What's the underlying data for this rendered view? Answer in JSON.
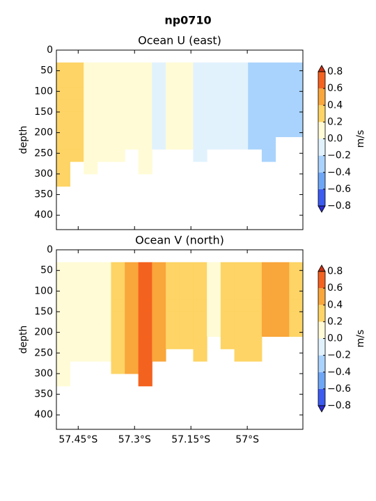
{
  "title": "np0710",
  "chart_data": [
    {
      "type": "contourf",
      "title": "Ocean U (east)",
      "ylabel": "depth",
      "x": [
        -57.49,
        -57.454,
        -57.417,
        -57.381,
        -57.344,
        -57.308,
        -57.272,
        -57.235,
        -57.199,
        -57.162,
        -57.126,
        -57.089,
        -57.053,
        -57.016,
        -56.98,
        -56.943,
        -56.907,
        -56.87
      ],
      "y": [
        45,
        75,
        105,
        135,
        165,
        195,
        225,
        255,
        285,
        315
      ],
      "values": [
        [
          0.3,
          0.3,
          0.1,
          0.1,
          0.1,
          0.1,
          0.1,
          -0.1,
          0.1,
          0.1,
          -0.1,
          -0.1,
          -0.1,
          -0.1,
          -0.3,
          -0.3,
          -0.3,
          -0.3
        ],
        [
          0.3,
          0.3,
          0.1,
          0.1,
          0.1,
          0.1,
          0.1,
          -0.1,
          0.1,
          0.1,
          -0.1,
          -0.1,
          -0.1,
          -0.1,
          -0.3,
          -0.3,
          -0.3,
          -0.3
        ],
        [
          0.3,
          0.3,
          0.1,
          0.1,
          0.1,
          0.1,
          0.1,
          -0.1,
          0.1,
          0.1,
          -0.1,
          -0.1,
          -0.1,
          -0.1,
          -0.3,
          -0.3,
          -0.3,
          -0.3
        ],
        [
          0.3,
          0.3,
          0.1,
          0.1,
          0.1,
          0.1,
          0.1,
          -0.1,
          0.1,
          0.1,
          -0.1,
          -0.1,
          -0.1,
          -0.1,
          -0.3,
          -0.3,
          -0.3,
          -0.3
        ],
        [
          0.3,
          0.3,
          0.1,
          0.1,
          0.1,
          0.1,
          0.1,
          -0.1,
          0.1,
          0.1,
          -0.1,
          -0.1,
          -0.1,
          -0.1,
          -0.3,
          -0.3,
          -0.3,
          -0.3
        ],
        [
          0.3,
          0.3,
          0.1,
          0.1,
          0.1,
          0.1,
          0.1,
          -0.1,
          0.1,
          0.1,
          -0.1,
          -0.1,
          -0.1,
          -0.1,
          -0.3,
          -0.3,
          -0.3,
          -0.3
        ],
        [
          0.3,
          0.3,
          0.1,
          0.1,
          0.1,
          0.1,
          0.1,
          -0.1,
          0.1,
          0.1,
          -0.1,
          -0.1,
          -0.1,
          -0.1,
          -0.3,
          -0.3,
          null,
          null
        ],
        [
          0.3,
          0.3,
          0.1,
          0.1,
          0.1,
          null,
          0.1,
          null,
          null,
          null,
          -0.1,
          null,
          null,
          null,
          null,
          -0.3,
          null,
          null
        ],
        [
          0.3,
          null,
          0.1,
          null,
          null,
          null,
          0.1,
          null,
          null,
          null,
          null,
          null,
          null,
          null,
          null,
          null,
          null,
          null
        ],
        [
          0.3,
          null,
          null,
          null,
          null,
          null,
          null,
          null,
          null,
          null,
          null,
          null,
          null,
          null,
          null,
          null,
          null,
          null
        ]
      ],
      "xlim": [
        -57.508,
        -56.852
      ],
      "ylim": [
        0,
        435
      ],
      "y_inverted": true,
      "yticks": [
        0,
        50,
        100,
        150,
        200,
        250,
        300,
        350,
        400
      ],
      "colors": [
        "#3c5cf0",
        "#6ea6f6",
        "#a9d3fc",
        "#e1f2fd",
        "#fffbd6",
        "#fdd465",
        "#f9a63b",
        "#f4621f"
      ],
      "under_color": "#2b2bd6",
      "over_color": "#c83214",
      "colorbar_label": "m/s",
      "colorbar_ticks": [
        {
          "value": -0.8,
          "label": "−0.8"
        },
        {
          "value": -0.6,
          "label": "−0.6"
        },
        {
          "value": -0.4,
          "label": "−0.4"
        },
        {
          "value": -0.2,
          "label": "−0.2"
        },
        {
          "value": 0,
          "label": "0.0"
        },
        {
          "value": 0.2,
          "label": "0.2"
        },
        {
          "value": 0.4,
          "label": "0.4"
        },
        {
          "value": 0.6,
          "label": "0.6"
        },
        {
          "value": 0.8,
          "label": "0.8"
        }
      ]
    },
    {
      "type": "contourf",
      "title": "Ocean V (north)",
      "ylabel": "depth",
      "x": [
        -57.49,
        -57.454,
        -57.417,
        -57.381,
        -57.344,
        -57.308,
        -57.272,
        -57.235,
        -57.199,
        -57.162,
        -57.126,
        -57.089,
        -57.053,
        -57.016,
        -56.98,
        -56.943,
        -56.907,
        -56.87
      ],
      "y": [
        45,
        75,
        105,
        135,
        165,
        195,
        225,
        255,
        285,
        315
      ],
      "values": [
        [
          0.1,
          0.1,
          0.1,
          0.1,
          0.3,
          0.5,
          0.7,
          0.5,
          0.3,
          0.3,
          0.3,
          0.1,
          0.3,
          0.3,
          0.3,
          0.5,
          0.5,
          0.3
        ],
        [
          0.1,
          0.1,
          0.1,
          0.1,
          0.3,
          0.5,
          0.7,
          0.5,
          0.3,
          0.3,
          0.3,
          0.1,
          0.3,
          0.3,
          0.3,
          0.5,
          0.5,
          0.3
        ],
        [
          0.1,
          0.1,
          0.1,
          0.1,
          0.3,
          0.5,
          0.7,
          0.5,
          0.3,
          0.3,
          0.3,
          0.1,
          0.3,
          0.3,
          0.3,
          0.5,
          0.5,
          0.3
        ],
        [
          0.1,
          0.1,
          0.1,
          0.1,
          0.3,
          0.5,
          0.7,
          0.5,
          0.3,
          0.3,
          0.3,
          0.1,
          0.3,
          0.3,
          0.3,
          0.5,
          0.5,
          0.3
        ],
        [
          0.1,
          0.1,
          0.1,
          0.1,
          0.3,
          0.5,
          0.7,
          0.5,
          0.3,
          0.3,
          0.3,
          0.1,
          0.3,
          0.3,
          0.3,
          0.5,
          0.5,
          0.3
        ],
        [
          0.1,
          0.1,
          0.1,
          0.1,
          0.3,
          0.5,
          0.7,
          0.5,
          0.3,
          0.3,
          0.3,
          0.1,
          0.3,
          0.3,
          0.3,
          0.5,
          0.5,
          0.3
        ],
        [
          0.1,
          0.1,
          0.1,
          0.1,
          0.3,
          0.5,
          0.7,
          0.5,
          0.3,
          0.3,
          0.3,
          null,
          0.3,
          0.3,
          0.3,
          null,
          null,
          null
        ],
        [
          0.1,
          0.1,
          0.1,
          0.1,
          0.3,
          0.5,
          0.7,
          0.5,
          null,
          null,
          0.3,
          null,
          null,
          0.3,
          0.3,
          null,
          null,
          null
        ],
        [
          0.1,
          null,
          null,
          null,
          0.3,
          0.5,
          0.7,
          null,
          null,
          null,
          null,
          null,
          null,
          null,
          null,
          null,
          null,
          null
        ],
        [
          0.1,
          null,
          null,
          null,
          null,
          null,
          0.7,
          null,
          null,
          null,
          null,
          null,
          null,
          null,
          null,
          null,
          null,
          null
        ]
      ],
      "xlim": [
        -57.508,
        -56.852
      ],
      "ylim": [
        0,
        435
      ],
      "y_inverted": true,
      "xticks": [
        {
          "value": -57.45,
          "label": "57.45°S"
        },
        {
          "value": -57.3,
          "label": "57.3°S"
        },
        {
          "value": -57.15,
          "label": "57.15°S"
        },
        {
          "value": -57,
          "label": "57°S"
        }
      ],
      "yticks": [
        0,
        50,
        100,
        150,
        200,
        250,
        300,
        350,
        400
      ],
      "colors": [
        "#3c5cf0",
        "#6ea6f6",
        "#a9d3fc",
        "#e1f2fd",
        "#fffbd6",
        "#fdd465",
        "#f9a63b",
        "#f4621f"
      ],
      "under_color": "#2b2bd6",
      "over_color": "#c83214",
      "colorbar_label": "m/s",
      "colorbar_ticks": [
        {
          "value": -0.8,
          "label": "−0.8"
        },
        {
          "value": -0.6,
          "label": "−0.6"
        },
        {
          "value": -0.4,
          "label": "−0.4"
        },
        {
          "value": -0.2,
          "label": "−0.2"
        },
        {
          "value": 0,
          "label": "0.0"
        },
        {
          "value": 0.2,
          "label": "0.2"
        },
        {
          "value": 0.4,
          "label": "0.4"
        },
        {
          "value": 0.6,
          "label": "0.6"
        },
        {
          "value": 0.8,
          "label": "0.8"
        }
      ]
    }
  ]
}
